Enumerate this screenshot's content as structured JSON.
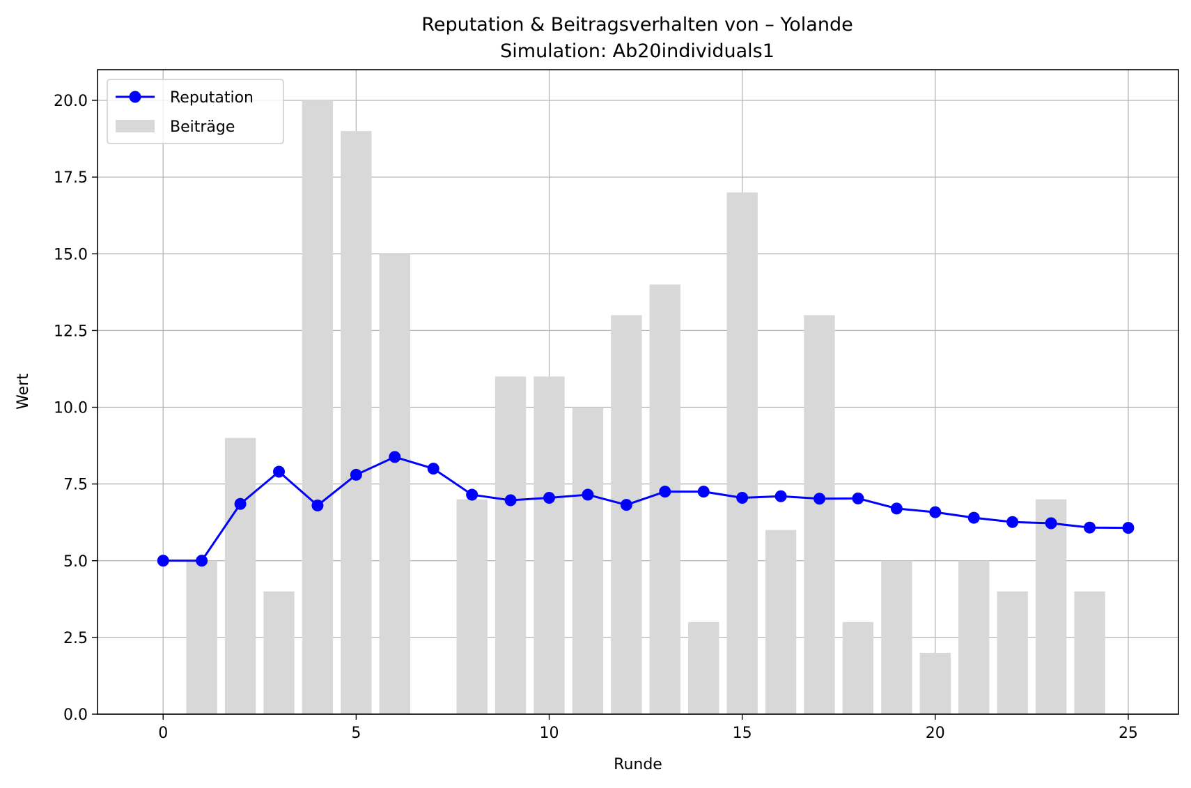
{
  "chart_data": {
    "type": "bar+line",
    "title": "Reputation & Beitragsverhalten von – Yolande",
    "subtitle": "Simulation: Ab20individuals1",
    "xlabel": "Runde",
    "ylabel": "Wert",
    "xlim": [
      -1.7,
      26.3
    ],
    "ylim": [
      0,
      21
    ],
    "xticks": [
      0,
      5,
      10,
      15,
      20,
      25
    ],
    "yticks": [
      0,
      2.5,
      5,
      7.5,
      10,
      12.5,
      15,
      17.5,
      20
    ],
    "xtick_labels": [
      "0",
      "5",
      "10",
      "15",
      "20",
      "25"
    ],
    "ytick_labels": [
      "0.0",
      "2.5",
      "5.0",
      "7.5",
      "10.0",
      "12.5",
      "15.0",
      "17.5",
      "20.0"
    ],
    "grid": true,
    "legend_position": "top-left",
    "series": [
      {
        "name": "Reputation",
        "type": "line",
        "color": "#0000ff",
        "marker": "circle",
        "x": [
          0,
          1,
          2,
          3,
          4,
          5,
          6,
          7,
          8,
          9,
          10,
          11,
          12,
          13,
          14,
          15,
          16,
          17,
          18,
          19,
          20,
          21,
          22,
          23,
          24,
          25
        ],
        "values": [
          5.0,
          5.0,
          6.85,
          7.9,
          6.8,
          7.8,
          8.38,
          8.0,
          7.15,
          6.97,
          7.05,
          7.15,
          6.82,
          7.25,
          7.25,
          7.05,
          7.1,
          7.02,
          7.03,
          6.7,
          6.58,
          6.4,
          6.26,
          6.22,
          6.08,
          6.07
        ]
      },
      {
        "name": "Beiträge",
        "type": "bar",
        "color": "#d8d8d8",
        "x": [
          1,
          2,
          3,
          4,
          5,
          6,
          8,
          9,
          10,
          11,
          12,
          13,
          14,
          15,
          16,
          17,
          18,
          19,
          20,
          21,
          22,
          23,
          24
        ],
        "values": [
          5,
          9,
          4,
          20,
          19,
          15,
          7,
          11,
          11,
          10,
          13,
          14,
          3,
          17,
          6,
          13,
          3,
          5,
          2,
          5,
          4,
          7,
          4
        ]
      }
    ]
  }
}
